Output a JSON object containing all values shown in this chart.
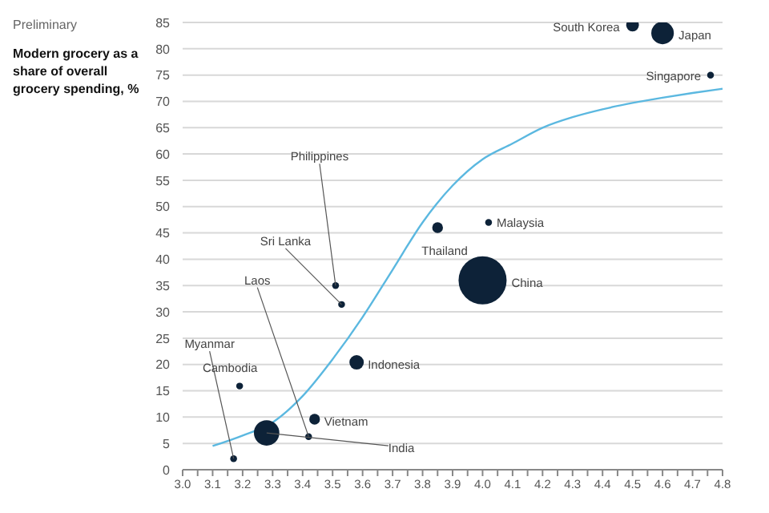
{
  "chart_data": {
    "type": "bubble",
    "ylabel": "Modern grocery as a share of overall grocery spending, %",
    "annotations": [
      "Preliminary",
      {
        "text": "South Korea",
        "x": 4.5,
        "y": 84.5
      },
      {
        "text": "Japan",
        "x": 4.6,
        "y": 83
      },
      {
        "text": "Singapore",
        "x": 4.76,
        "y": 75
      },
      {
        "text": "Malaysia",
        "x": 4.02,
        "y": 47
      },
      {
        "text": "Thailand",
        "x": 3.85,
        "y": 46
      },
      {
        "text": "China",
        "x": 4.0,
        "y": 36
      },
      {
        "text": "Indonesia",
        "x": 3.58,
        "y": 20.4
      },
      {
        "text": "Vietnam",
        "x": 3.44,
        "y": 9.6
      },
      {
        "text": "India",
        "x": 3.28,
        "y": 7
      },
      {
        "text": "Myanmar",
        "x": 3.17,
        "y": 2.1
      },
      {
        "text": "Cambodia",
        "x": 3.19,
        "y": 15.9
      },
      {
        "text": "Laos",
        "x": 3.42,
        "y": 6.3
      },
      {
        "text": "Sri Lanka",
        "x": 3.53,
        "y": 31.4
      },
      {
        "text": "Philippines",
        "x": 3.51,
        "y": 35
      }
    ],
    "series": [
      {
        "type": "bubble",
        "color": "#0d2238",
        "x": [
          4.5,
          4.6,
          4.76,
          4.02,
          3.85,
          4.0,
          3.58,
          3.44,
          3.28,
          3.17,
          3.19,
          3.42,
          3.53,
          3.51
        ],
        "values": [
          84.5,
          83,
          75,
          47,
          46,
          36,
          20.4,
          9.6,
          7,
          2.1,
          15.9,
          6.3,
          31.4,
          35
        ],
        "sizes": [
          0.07,
          0.22,
          0.02,
          0.02,
          0.05,
          1,
          0.09,
          0.05,
          0.28,
          0.02,
          0.02,
          0.02,
          0.02,
          0.02
        ]
      },
      {
        "type": "line",
        "color": "#5bb8e0",
        "x": [
          3.1,
          3.2,
          3.3,
          3.4,
          3.5,
          3.6,
          3.7,
          3.8,
          3.9,
          4.0,
          4.1,
          4.2,
          4.3,
          4.4,
          4.5,
          4.6,
          4.7,
          4.8
        ],
        "values": [
          4.5,
          6.5,
          9,
          14,
          21,
          29,
          38,
          47,
          54,
          59,
          62,
          65,
          67,
          68.5,
          69.7,
          70.7,
          71.6,
          72.4
        ]
      }
    ],
    "xlim": [
      3.0,
      4.8
    ],
    "xticks": [
      {
        "value": 3.0,
        "label": "3.0"
      },
      {
        "value": 3.05,
        "label": null
      },
      3.1,
      {
        "value": 3.15,
        "label": null
      },
      3.2,
      {
        "value": 3.25,
        "label": null
      },
      3.3,
      {
        "value": 3.35,
        "label": null
      },
      3.4,
      {
        "value": 3.45,
        "label": null
      },
      3.5,
      {
        "value": 3.55,
        "label": null
      },
      3.6,
      {
        "value": 3.65,
        "label": null
      },
      3.7,
      {
        "value": 3.75,
        "label": null
      },
      3.8,
      {
        "value": 3.85,
        "label": null
      },
      3.9,
      {
        "value": 3.95,
        "label": null
      },
      {
        "value": 4.0,
        "label": "4.0"
      },
      {
        "value": 4.05,
        "label": null
      },
      4.1,
      {
        "value": 4.15,
        "label": null
      },
      4.2,
      {
        "value": 4.25,
        "label": null
      },
      4.3,
      {
        "value": 4.35,
        "label": null
      },
      4.4,
      {
        "value": 4.45,
        "label": null
      },
      4.5,
      {
        "value": 4.55,
        "label": null
      },
      4.6,
      {
        "value": 4.65,
        "label": null
      },
      4.7,
      {
        "value": 4.75,
        "label": null
      },
      4.8
    ],
    "ylim": [
      0,
      85
    ],
    "yticks": [
      0,
      5,
      10,
      15,
      20,
      25,
      30,
      35,
      40,
      45,
      50,
      55,
      60,
      65,
      70,
      75,
      80,
      85
    ],
    "grid": "y",
    "legend": false
  }
}
